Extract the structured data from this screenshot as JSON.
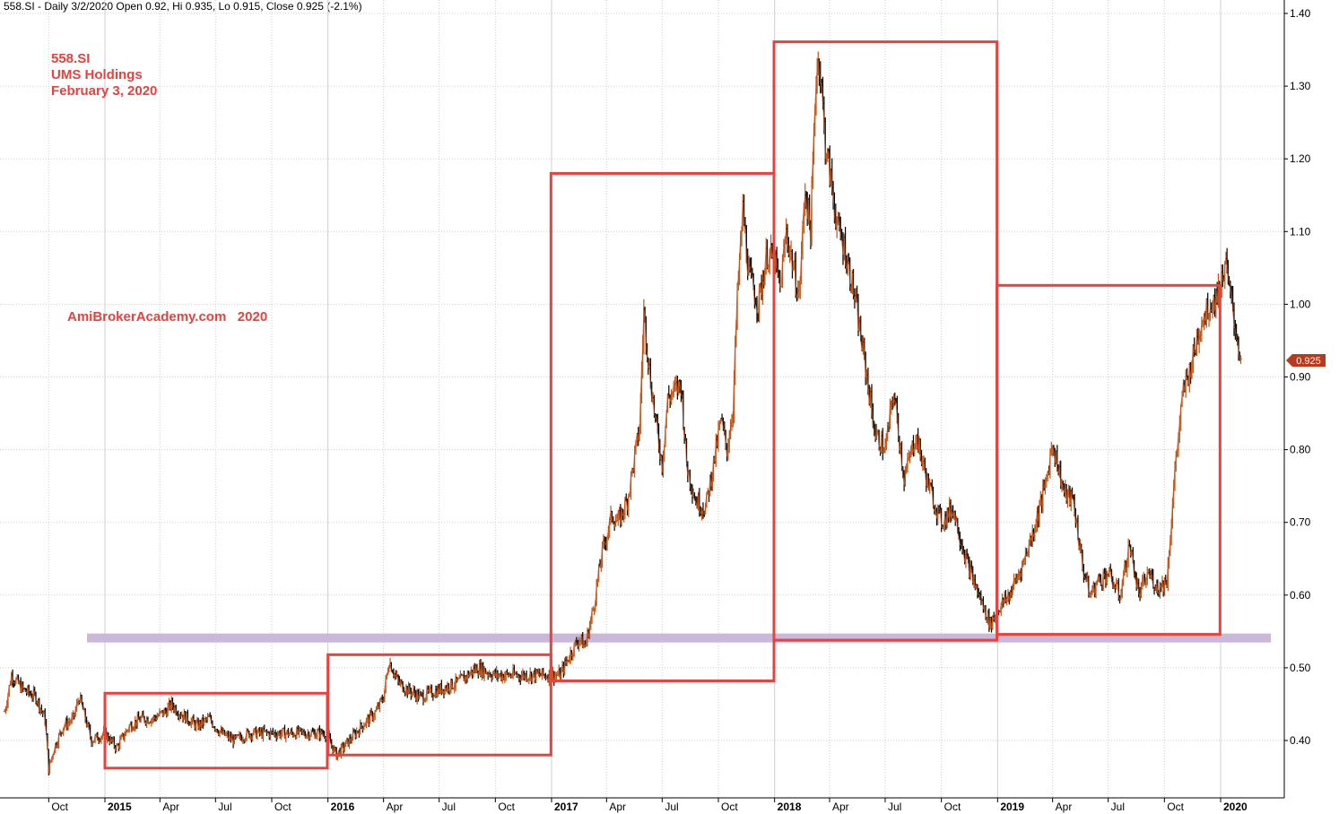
{
  "header": {
    "text": "558.SI - Daily 3/2/2020 Open 0.92, Hi 0.935, Lo 0.915, Close 0.925 (-2.1%)"
  },
  "annotations": {
    "symbol": "558.SI",
    "company": "UMS Holdings",
    "date": "February 3, 2020",
    "watermark": "AmiBrokerAcademy.com   2020"
  },
  "colors": {
    "box": "#e8413e",
    "support": "#c9b8d9",
    "candle_up": "#c0541a",
    "candle_down": "#000000",
    "price_tag": "#b8391c",
    "grid": "#cfcfcf"
  },
  "chart_data": {
    "type": "line",
    "title": "",
    "ylim": [
      0.33,
      1.42
    ],
    "y_ticks": [
      "1.40",
      "1.30",
      "1.20",
      "1.10",
      "1.00",
      "0.90",
      "0.80",
      "0.70",
      "0.60",
      "0.50",
      "0.40"
    ],
    "y_tick_values": [
      1.4,
      1.3,
      1.2,
      1.1,
      1.0,
      0.9,
      0.8,
      0.7,
      0.6,
      0.5,
      0.4
    ],
    "x_ticks": [
      {
        "label": "Oct",
        "date": "2014-10-01",
        "bold": false
      },
      {
        "label": "2015",
        "date": "2015-01-01",
        "bold": true
      },
      {
        "label": "Apr",
        "date": "2015-04-01",
        "bold": false
      },
      {
        "label": "Jul",
        "date": "2015-07-01",
        "bold": false
      },
      {
        "label": "Oct",
        "date": "2015-10-01",
        "bold": false
      },
      {
        "label": "2016",
        "date": "2016-01-01",
        "bold": true
      },
      {
        "label": "Apr",
        "date": "2016-04-01",
        "bold": false
      },
      {
        "label": "Jul",
        "date": "2016-07-01",
        "bold": false
      },
      {
        "label": "Oct",
        "date": "2016-10-01",
        "bold": false
      },
      {
        "label": "2017",
        "date": "2017-01-01",
        "bold": true
      },
      {
        "label": "Apr",
        "date": "2017-04-01",
        "bold": false
      },
      {
        "label": "Jul",
        "date": "2017-07-01",
        "bold": false
      },
      {
        "label": "Oct",
        "date": "2017-10-01",
        "bold": false
      },
      {
        "label": "2018",
        "date": "2018-01-01",
        "bold": true
      },
      {
        "label": "Apr",
        "date": "2018-04-01",
        "bold": false
      },
      {
        "label": "Jul",
        "date": "2018-07-01",
        "bold": false
      },
      {
        "label": "Oct",
        "date": "2018-10-01",
        "bold": false
      },
      {
        "label": "2019",
        "date": "2019-01-01",
        "bold": true
      },
      {
        "label": "Apr",
        "date": "2019-04-01",
        "bold": false
      },
      {
        "label": "Jul",
        "date": "2019-07-01",
        "bold": false
      },
      {
        "label": "Oct",
        "date": "2019-10-01",
        "bold": false
      },
      {
        "label": "2020",
        "date": "2020-01-01",
        "bold": true
      }
    ],
    "x_range": [
      "2014-07-21",
      "2020-03-20"
    ],
    "last_price_label": "0.925",
    "last_price": 0.925,
    "support_level": 0.541,
    "boxes": [
      {
        "x0": "2015-01-01",
        "x1": "2015-12-31",
        "y0": 0.362,
        "y1": 0.465
      },
      {
        "x0": "2016-01-01",
        "x1": "2016-12-31",
        "y0": 0.38,
        "y1": 0.518
      },
      {
        "x0": "2016-12-31",
        "x1": "2017-12-31",
        "y0": 0.482,
        "y1": 1.18
      },
      {
        "x0": "2017-12-31",
        "x1": "2018-12-31",
        "y0": 0.538,
        "y1": 1.361
      },
      {
        "x0": "2018-12-31",
        "x1": "2019-12-31",
        "y0": 0.546,
        "y1": 1.026
      }
    ],
    "series": [
      {
        "x": [
          "2014-07-21",
          "2014-08-01",
          "2014-08-20",
          "2014-09-10",
          "2014-09-25",
          "2014-10-01",
          "2014-10-10",
          "2014-10-25",
          "2014-11-10",
          "2014-11-20",
          "2014-12-10",
          "2015-01-01",
          "2015-01-20",
          "2015-02-10",
          "2015-03-01",
          "2015-03-20",
          "2015-04-10",
          "2015-04-20",
          "2015-05-01",
          "2015-06-01",
          "2015-06-20",
          "2015-07-10",
          "2015-08-01",
          "2015-08-25",
          "2015-09-15",
          "2015-10-01",
          "2015-11-01",
          "2015-12-01",
          "2015-12-28",
          "2016-01-15",
          "2016-02-05",
          "2016-02-25",
          "2016-03-20",
          "2016-04-01",
          "2016-04-10",
          "2016-04-25",
          "2016-05-10",
          "2016-06-01",
          "2016-07-01",
          "2016-08-01",
          "2016-09-01",
          "2016-10-01",
          "2016-11-01",
          "2016-12-01",
          "2017-01-01",
          "2017-01-15",
          "2017-02-01",
          "2017-02-15",
          "2017-02-25",
          "2017-03-10",
          "2017-03-25",
          "2017-04-10",
          "2017-04-20",
          "2017-05-05",
          "2017-05-15",
          "2017-05-25",
          "2017-06-01",
          "2017-06-10",
          "2017-06-20",
          "2017-07-01",
          "2017-07-10",
          "2017-07-20",
          "2017-08-01",
          "2017-08-10",
          "2017-08-25",
          "2017-09-10",
          "2017-09-25",
          "2017-10-05",
          "2017-10-15",
          "2017-10-25",
          "2017-11-01",
          "2017-11-10",
          "2017-11-20",
          "2017-12-05",
          "2017-12-20",
          "2018-01-01",
          "2018-01-10",
          "2018-01-20",
          "2018-02-01",
          "2018-02-10",
          "2018-02-20",
          "2018-03-01",
          "2018-03-10",
          "2018-03-15",
          "2018-03-25",
          "2018-04-05",
          "2018-04-15",
          "2018-04-25",
          "2018-05-10",
          "2018-06-01",
          "2018-06-15",
          "2018-07-01",
          "2018-07-15",
          "2018-08-01",
          "2018-08-20",
          "2018-09-10",
          "2018-10-01",
          "2018-10-20",
          "2018-11-10",
          "2018-12-01",
          "2018-12-20",
          "2019-01-01",
          "2019-01-20",
          "2019-02-10",
          "2019-03-01",
          "2019-03-20",
          "2019-04-01",
          "2019-04-20",
          "2019-05-05",
          "2019-05-20",
          "2019-06-01",
          "2019-06-15",
          "2019-07-01",
          "2019-07-20",
          "2019-08-05",
          "2019-08-20",
          "2019-09-05",
          "2019-09-20",
          "2019-10-05",
          "2019-10-20",
          "2019-11-01",
          "2019-11-15",
          "2019-12-01",
          "2019-12-15",
          "2020-01-01",
          "2020-01-08",
          "2020-01-15",
          "2020-01-25",
          "2020-02-03"
        ],
        "y": [
          0.44,
          0.49,
          0.47,
          0.46,
          0.43,
          0.36,
          0.39,
          0.42,
          0.43,
          0.46,
          0.4,
          0.41,
          0.39,
          0.42,
          0.43,
          0.43,
          0.44,
          0.45,
          0.44,
          0.42,
          0.43,
          0.41,
          0.4,
          0.41,
          0.41,
          0.41,
          0.41,
          0.41,
          0.41,
          0.38,
          0.4,
          0.42,
          0.44,
          0.46,
          0.51,
          0.48,
          0.47,
          0.46,
          0.47,
          0.48,
          0.5,
          0.49,
          0.49,
          0.49,
          0.49,
          0.49,
          0.52,
          0.54,
          0.53,
          0.58,
          0.66,
          0.71,
          0.7,
          0.73,
          0.78,
          0.83,
          0.99,
          0.91,
          0.84,
          0.78,
          0.87,
          0.88,
          0.89,
          0.78,
          0.73,
          0.72,
          0.79,
          0.84,
          0.8,
          0.86,
          1.01,
          1.13,
          1.04,
          1.0,
          1.07,
          1.06,
          1.02,
          1.1,
          1.05,
          1.01,
          1.16,
          1.1,
          1.32,
          1.34,
          1.22,
          1.16,
          1.1,
          1.08,
          1.02,
          0.9,
          0.82,
          0.8,
          0.88,
          0.76,
          0.82,
          0.75,
          0.7,
          0.72,
          0.65,
          0.6,
          0.56,
          0.58,
          0.6,
          0.64,
          0.69,
          0.75,
          0.81,
          0.74,
          0.73,
          0.64,
          0.6,
          0.62,
          0.63,
          0.6,
          0.67,
          0.6,
          0.63,
          0.61,
          0.62,
          0.79,
          0.88,
          0.92,
          0.98,
          1.0,
          1.02,
          1.06,
          1.02,
          0.97,
          0.925
        ]
      }
    ]
  }
}
